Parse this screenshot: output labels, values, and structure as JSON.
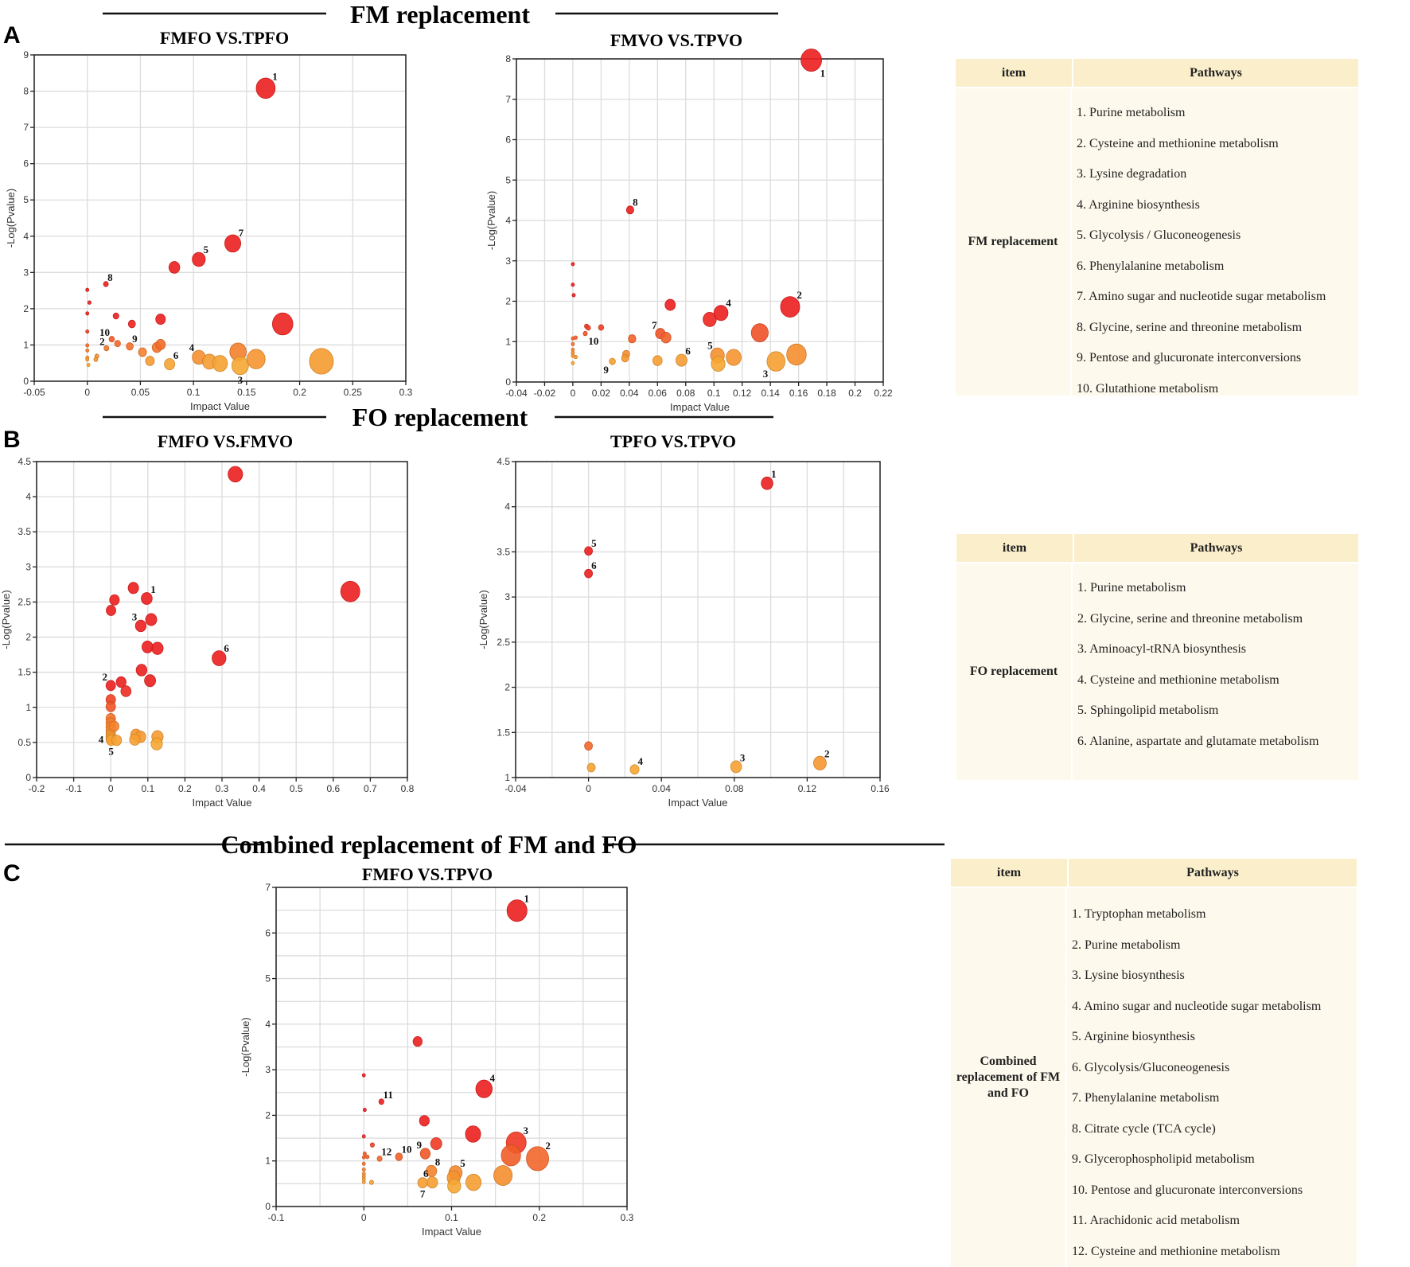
{
  "sections": [
    {
      "letter": "A",
      "title": "FM replacement"
    },
    {
      "letter": "B",
      "title": "FO replacement"
    },
    {
      "letter": "C",
      "title": "Combined replacement of FM and FO"
    }
  ],
  "colors": {
    "low": "#f6a633",
    "mid": "#f2692a",
    "high": "#ec1f1f"
  },
  "chart_data": [
    {
      "type": "scatter",
      "title": "FMFO VS.TPFO",
      "xlabel": "Impact Value",
      "ylabel": "-Log(Pvalue)",
      "xlim": [
        -0.05,
        0.3
      ],
      "ylim": [
        0,
        9
      ],
      "grid": true,
      "x_grid_step": 0.05,
      "y_grid_step": 1,
      "x_ticks": [
        "-0.05",
        "0",
        "0.05",
        "0.1",
        "0.15",
        "0.2",
        "0.25",
        "0.3"
      ],
      "y_ticks": [
        "0",
        "1",
        "2",
        "3",
        "4",
        "5",
        "6",
        "7",
        "8",
        "9"
      ],
      "color_domain": [
        0.45,
        1.6
      ],
      "points": [
        [
          0.168,
          8.08,
          "1",
          "ne"
        ],
        [
          0.184,
          1.58,
          "",
          ""
        ],
        [
          0.137,
          3.8,
          "7",
          "ne"
        ],
        [
          0.105,
          3.36,
          "5",
          "ne"
        ],
        [
          0.082,
          3.14,
          "",
          ""
        ],
        [
          0.0175,
          2.68,
          "8",
          "ne"
        ],
        [
          0,
          2.52,
          "",
          ""
        ],
        [
          0.002,
          2.17,
          "",
          ""
        ],
        [
          0,
          1.87,
          "",
          ""
        ],
        [
          0,
          1.37,
          "",
          ""
        ],
        [
          0,
          0.99,
          "",
          ""
        ],
        [
          0,
          0.85,
          "",
          ""
        ],
        [
          0,
          0.65,
          "",
          ""
        ],
        [
          0,
          0.6,
          "",
          ""
        ],
        [
          0.001,
          0.45,
          "",
          ""
        ],
        [
          0.027,
          1.8,
          "",
          ""
        ],
        [
          0.042,
          1.58,
          "",
          ""
        ],
        [
          0.069,
          1.71,
          "",
          ""
        ],
        [
          0.023,
          1.16,
          "10",
          "nw"
        ],
        [
          0.0285,
          1.04,
          "",
          ""
        ],
        [
          0.018,
          0.91,
          "2",
          "nw"
        ],
        [
          0.04,
          0.96,
          "9",
          "ne"
        ],
        [
          0.052,
          0.8,
          "",
          ""
        ],
        [
          0.0655,
          0.93,
          "",
          ""
        ],
        [
          0.069,
          1.01,
          "",
          ""
        ],
        [
          0.059,
          0.56,
          "",
          ""
        ],
        [
          0.0775,
          0.47,
          "6",
          "ne"
        ],
        [
          0.105,
          0.66,
          "4",
          "nw"
        ],
        [
          0.115,
          0.54,
          "",
          ""
        ],
        [
          0.125,
          0.49,
          "",
          ""
        ],
        [
          0.142,
          0.81,
          "",
          ""
        ],
        [
          0.144,
          0.43,
          "3",
          "s"
        ],
        [
          0.159,
          0.61,
          "",
          ""
        ],
        [
          0.2205,
          0.55,
          "",
          ""
        ],
        [
          0.009,
          0.69,
          "",
          ""
        ],
        [
          0.008,
          0.6,
          "",
          ""
        ]
      ]
    },
    {
      "type": "scatter",
      "title": "FMVO VS.TPVO",
      "xlabel": "Impact Value",
      "ylabel": "-Log(Pvalue)",
      "xlim": [
        -0.04,
        0.22
      ],
      "ylim": [
        0,
        8
      ],
      "grid": true,
      "x_grid_step": 0.02,
      "y_grid_step": 1,
      "x_ticks": [
        "-0.04",
        "-0.02",
        "0",
        "0.02",
        "0.04",
        "0.06",
        "0.08",
        "0.1",
        "0.12",
        "0.14",
        "0.16",
        "0.18",
        "0.2",
        "0.22"
      ],
      "y_ticks": [
        "0",
        "1",
        "2",
        "3",
        "4",
        "5",
        "6",
        "7",
        "8"
      ],
      "color_domain": [
        0.45,
        1.6
      ],
      "points": [
        [
          0.169,
          7.97,
          "1",
          "se"
        ],
        [
          0.0406,
          4.26,
          "8",
          "ne"
        ],
        [
          0,
          2.92,
          "",
          ""
        ],
        [
          0,
          2.41,
          "",
          ""
        ],
        [
          0.0006,
          2.15,
          "",
          ""
        ],
        [
          0,
          1.08,
          "",
          ""
        ],
        [
          0.002,
          1.1,
          "",
          ""
        ],
        [
          0,
          0.94,
          "",
          ""
        ],
        [
          0,
          0.8,
          "",
          ""
        ],
        [
          0,
          0.72,
          "",
          ""
        ],
        [
          0,
          0.65,
          "",
          ""
        ],
        [
          0.002,
          0.62,
          "",
          ""
        ],
        [
          0,
          0.47,
          "",
          ""
        ],
        [
          0.0097,
          1.38,
          "",
          ""
        ],
        [
          0.011,
          1.34,
          "",
          ""
        ],
        [
          0.0088,
          1.2,
          "10",
          "se"
        ],
        [
          0.02,
          1.35,
          "",
          ""
        ],
        [
          0.042,
          1.07,
          "",
          ""
        ],
        [
          0.0378,
          0.69,
          "",
          ""
        ],
        [
          0.037,
          0.59,
          "",
          ""
        ],
        [
          0.028,
          0.51,
          "9",
          "sw"
        ],
        [
          0.069,
          1.91,
          "",
          ""
        ],
        [
          0.062,
          1.2,
          "7",
          "nw"
        ],
        [
          0.066,
          1.1,
          "",
          ""
        ],
        [
          0.06,
          0.53,
          "",
          ""
        ],
        [
          0.077,
          0.54,
          "6",
          "ne"
        ],
        [
          0.097,
          1.55,
          "",
          ""
        ],
        [
          0.105,
          1.71,
          "4",
          "ne"
        ],
        [
          0.1025,
          0.66,
          "5",
          "nw"
        ],
        [
          0.103,
          0.45,
          "",
          ""
        ],
        [
          0.114,
          0.61,
          "",
          ""
        ],
        [
          0.1325,
          1.22,
          "",
          ""
        ],
        [
          0.154,
          1.86,
          "2",
          "ne"
        ],
        [
          0.144,
          0.51,
          "3",
          "sw"
        ],
        [
          0.1585,
          0.68,
          "",
          ""
        ]
      ]
    },
    {
      "type": "scatter",
      "title": "FMFO VS.FMVO",
      "xlabel": "Impact Value",
      "ylabel": "-Log(Pvalue)",
      "xlim": [
        -0.2,
        0.8
      ],
      "ylim": [
        0,
        4.5
      ],
      "grid": true,
      "x_grid_step": 0.1,
      "y_grid_step": 0.5,
      "x_ticks": [
        "-0.2",
        "-0.1",
        "0",
        "0.1",
        "0.2",
        "0.3",
        "0.4",
        "0.5",
        "0.6",
        "0.7",
        "0.8"
      ],
      "y_ticks": [
        "0",
        "0.5",
        "1",
        "1.5",
        "2",
        "2.5",
        "3",
        "3.5",
        "4",
        "4.5"
      ],
      "color_domain": [
        0.5,
        1.3
      ],
      "points": [
        [
          0.336,
          4.32,
          "",
          ""
        ],
        [
          0.646,
          2.65,
          "",
          ""
        ],
        [
          0.292,
          1.7,
          "6",
          "ne"
        ],
        [
          0.061,
          2.7,
          "",
          ""
        ],
        [
          0.097,
          2.55,
          "1",
          "ne"
        ],
        [
          0.01,
          2.53,
          "",
          ""
        ],
        [
          0.0007,
          2.38,
          "",
          ""
        ],
        [
          0.109,
          2.25,
          "",
          ""
        ],
        [
          0.081,
          2.16,
          "3",
          "nw"
        ],
        [
          0.099,
          1.86,
          "",
          ""
        ],
        [
          0.126,
          1.84,
          "",
          ""
        ],
        [
          0.083,
          1.53,
          "",
          ""
        ],
        [
          0.106,
          1.38,
          "",
          ""
        ],
        [
          0,
          1.31,
          "2",
          "nw"
        ],
        [
          0.028,
          1.36,
          "",
          ""
        ],
        [
          0.041,
          1.23,
          "",
          ""
        ],
        [
          0,
          1.11,
          "",
          ""
        ],
        [
          0,
          1.01,
          "",
          ""
        ],
        [
          0,
          0.84,
          "",
          ""
        ],
        [
          0,
          0.78,
          "",
          ""
        ],
        [
          0,
          0.72,
          "",
          ""
        ],
        [
          0,
          0.67,
          "",
          ""
        ],
        [
          0,
          0.62,
          "",
          ""
        ],
        [
          0,
          0.58,
          "",
          ""
        ],
        [
          0.009,
          0.73,
          "",
          ""
        ],
        [
          0,
          0.55,
          "4",
          "w"
        ],
        [
          0.001,
          0.53,
          "5",
          "s"
        ],
        [
          0.016,
          0.53,
          "",
          ""
        ],
        [
          0.068,
          0.61,
          "",
          ""
        ],
        [
          0.08,
          0.58,
          "",
          ""
        ],
        [
          0.065,
          0.54,
          "",
          ""
        ],
        [
          0.126,
          0.58,
          "",
          ""
        ],
        [
          0.124,
          0.48,
          "",
          ""
        ]
      ]
    },
    {
      "type": "scatter",
      "title": "TPFO VS.TPVO",
      "xlabel": "Impact Value",
      "ylabel": "-Log(Pvalue)",
      "xlim": [
        -0.04,
        0.16
      ],
      "ylim": [
        1,
        4.5
      ],
      "grid": true,
      "x_grid_step": 0.02,
      "y_grid_step": 0.5,
      "x_ticks": [
        "-0.04",
        "0",
        "0.04",
        "0.08",
        "0.12",
        "0.16"
      ],
      "y_ticks": [
        "1",
        "1.5",
        "2",
        "2.5",
        "3",
        "3.5",
        "4",
        "4.5"
      ],
      "color_domain": [
        1.1,
        1.6
      ],
      "points": [
        [
          0.098,
          4.26,
          "1",
          "ne"
        ],
        [
          0,
          3.51,
          "5",
          "ne"
        ],
        [
          0,
          3.26,
          "6",
          "ne"
        ],
        [
          0,
          1.35,
          "",
          ""
        ],
        [
          0.0015,
          1.11,
          "",
          ""
        ],
        [
          0.0253,
          1.09,
          "4",
          "ne"
        ],
        [
          0.081,
          1.12,
          "3",
          "ne"
        ],
        [
          0.127,
          1.16,
          "2",
          "ne"
        ]
      ]
    },
    {
      "type": "scatter",
      "title": "FMFO VS.TPVO",
      "xlabel": "Impact Value",
      "ylabel": "-Log(Pvalue)",
      "xlim": [
        -0.1,
        0.3
      ],
      "ylim": [
        0,
        7
      ],
      "grid": true,
      "x_grid_step": 0.05,
      "y_grid_step": 0.5,
      "x_ticks": [
        "-0.1",
        "0",
        "0.1",
        "0.2",
        "0.3"
      ],
      "y_ticks": [
        "0",
        "1",
        "2",
        "3",
        "4",
        "5",
        "6",
        "7"
      ],
      "color_domain": [
        0.45,
        1.6
      ],
      "points": [
        [
          0.1746,
          6.49,
          "1",
          "ne"
        ],
        [
          0.0613,
          3.62,
          "",
          ""
        ],
        [
          0.137,
          2.58,
          "4",
          "ne"
        ],
        [
          0.02,
          2.3,
          "11",
          "ne"
        ],
        [
          0,
          2.88,
          "",
          ""
        ],
        [
          0.001,
          2.12,
          "",
          ""
        ],
        [
          0,
          1.54,
          "",
          ""
        ],
        [
          0.001,
          1.16,
          "",
          ""
        ],
        [
          0,
          1.08,
          "",
          ""
        ],
        [
          0,
          0.94,
          "",
          ""
        ],
        [
          0,
          0.81,
          "",
          ""
        ],
        [
          0,
          0.72,
          "",
          ""
        ],
        [
          0,
          0.66,
          "",
          ""
        ],
        [
          0,
          0.6,
          "",
          ""
        ],
        [
          0,
          0.54,
          "",
          ""
        ],
        [
          0.0097,
          1.35,
          "",
          ""
        ],
        [
          0.004,
          1.09,
          "",
          ""
        ],
        [
          0.018,
          1.05,
          "12",
          "ne"
        ],
        [
          0.04,
          1.09,
          "10",
          "ne"
        ],
        [
          0.069,
          1.88,
          "",
          ""
        ],
        [
          0.07,
          1.16,
          "9",
          "nw"
        ],
        [
          0.0825,
          1.38,
          "",
          ""
        ],
        [
          0.1245,
          1.59,
          "",
          ""
        ],
        [
          0.1737,
          1.4,
          "3",
          "ne"
        ],
        [
          0.1677,
          1.12,
          "",
          ""
        ],
        [
          0.198,
          1.05,
          "2",
          "ne"
        ],
        [
          0.077,
          0.78,
          "8",
          "ne"
        ],
        [
          0.1045,
          0.74,
          "5",
          "ne"
        ],
        [
          0.1024,
          0.63,
          "",
          ""
        ],
        [
          0.103,
          0.45,
          "",
          ""
        ],
        [
          0.078,
          0.53,
          "6",
          "nw"
        ],
        [
          0.067,
          0.52,
          "7",
          "s"
        ],
        [
          0.125,
          0.53,
          "",
          ""
        ],
        [
          0.1586,
          0.68,
          "",
          ""
        ],
        [
          0.0088,
          0.53,
          "",
          ""
        ]
      ]
    }
  ],
  "tables": [
    {
      "header_item": "item",
      "header_pathways": "Pathways",
      "item": "FM replacement",
      "pathways": [
        "1. Purine metabolism",
        "2. Cysteine and methionine metabolism",
        "3. Lysine degradation",
        "4. Arginine biosynthesis",
        "5. Glycolysis / Gluconeogenesis",
        "6. Phenylalanine metabolism",
        "7. Amino sugar and nucleotide sugar metabolism",
        "8. Glycine, serine and threonine metabolism",
        "9. Pentose and glucuronate interconversions",
        "10. Glutathione metabolism"
      ]
    },
    {
      "header_item": "item",
      "header_pathways": "Pathways",
      "item": "FO replacement",
      "pathways": [
        "1. Purine metabolism",
        "2. Glycine, serine and threonine metabolism",
        "3. Aminoacyl-tRNA biosynthesis",
        "4. Cysteine and methionine metabolism",
        "5. Sphingolipid metabolism",
        "6. Alanine, aspartate and glutamate metabolism"
      ]
    },
    {
      "header_item": "item",
      "header_pathways": "Pathways",
      "item": "Combined replacement of FM and FO",
      "pathways": [
        "1. Tryptophan metabolism",
        "2. Purine metabolism",
        "3. Lysine biosynthesis",
        "4. Amino sugar and nucleotide sugar metabolism",
        "5. Arginine biosynthesis",
        "6. Glycolysis/Gluconeogenesis",
        "7. Phenylalanine metabolism",
        "8. Citrate cycle (TCA cycle)",
        "9. Glycerophospholipid metabolism",
        "10. Pentose and glucuronate interconversions",
        "11. Arachidonic acid metabolism",
        "12. Cysteine and methionine metabolism"
      ]
    }
  ]
}
